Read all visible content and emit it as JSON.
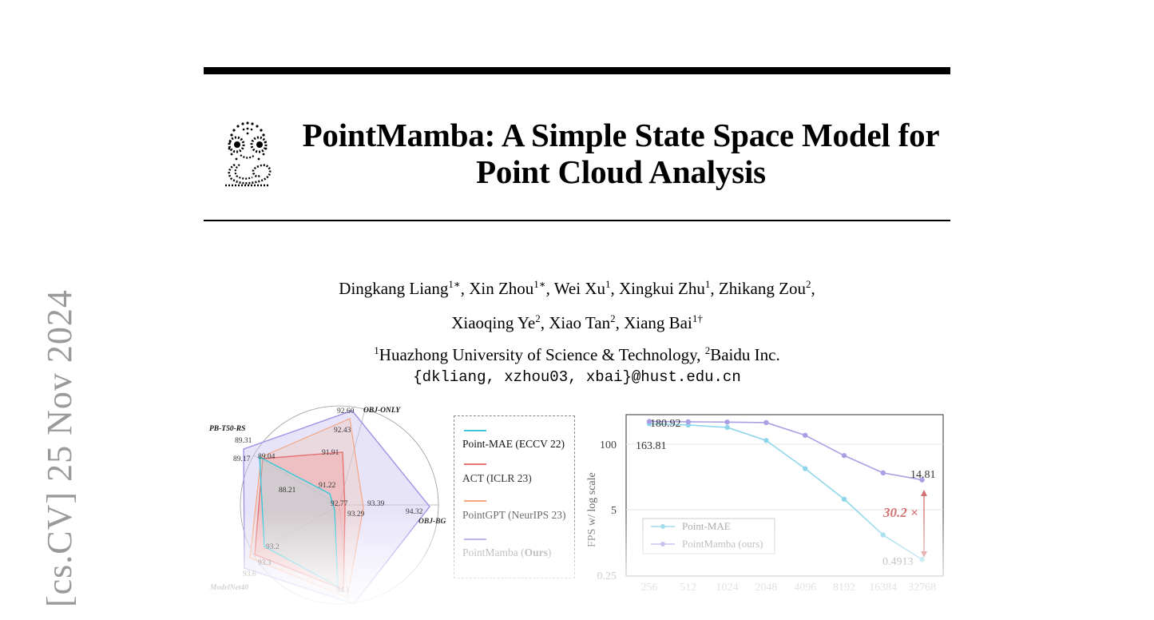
{
  "paper": {
    "title_line1": "PointMamba: A Simple State Space Model for",
    "title_line2": "Point Cloud Analysis",
    "authors_line1": [
      {
        "name": "Dingkang Liang",
        "sup": "1∗"
      },
      {
        "name": "Xin Zhou",
        "sup": "1∗"
      },
      {
        "name": "Wei Xu",
        "sup": "1"
      },
      {
        "name": "Xingkui Zhu",
        "sup": "1"
      },
      {
        "name": "Zhikang Zou",
        "sup": "2"
      }
    ],
    "authors_line2": [
      {
        "name": "Xiaoqing Ye",
        "sup": "2"
      },
      {
        "name": "Xiao Tan",
        "sup": "2"
      },
      {
        "name": "Xiang Bai",
        "sup": "1†"
      }
    ],
    "affiliation1_sup": "1",
    "affiliation1": "Huazhong University of Science & Technology, ",
    "affiliation2_sup": "2",
    "affiliation2": "Baidu Inc.",
    "email": "{dkliang, xzhou03, xbai}@hust.edu.cn",
    "arxiv_stamp": "[cs.CV]  25 Nov 2024"
  },
  "legend": {
    "items": [
      {
        "label": "Point-MAE (ECCV 22)",
        "color": "#3cc8d8"
      },
      {
        "label": "ACT (ICLR 23)",
        "color": "#e57373"
      },
      {
        "label": "PointGPT (NeurIPS 23)",
        "color": "#f4a582"
      },
      {
        "label_prefix": "PointMamba (",
        "label_bold": "Ours",
        "label_suffix": ")",
        "color": "#9f94e6"
      }
    ]
  },
  "chart_data": [
    {
      "type": "radar",
      "axes": [
        {
          "name": "OBJ-ONLY"
        },
        {
          "name": "OBJ-BG"
        },
        {
          "name": ""
        },
        {
          "name": "ModelNet40"
        },
        {
          "name": "PB-T50-RS"
        }
      ],
      "value_labels": [
        "92.60",
        "92.43",
        "91.91",
        "91.22",
        "92.77",
        "93.39",
        "93.29",
        "94.32",
        "88.21",
        "89.31",
        "89.17",
        "89.04",
        "93.2",
        "93.3",
        "93.6",
        "84.1"
      ],
      "series": [
        {
          "name": "Point-MAE (ECCV 22)",
          "color": "#3cc8d8"
        },
        {
          "name": "ACT (ICLR 23)",
          "color": "#e57373"
        },
        {
          "name": "PointGPT (NeurIPS 23)",
          "color": "#f4a582"
        },
        {
          "name": "PointMamba (Ours)",
          "color": "#9f94e6"
        }
      ]
    },
    {
      "type": "line",
      "x": [
        256,
        512,
        1024,
        2048,
        4096,
        8192,
        16384,
        32768
      ],
      "x_tick_labels": [
        "256",
        "512",
        "1024",
        "2048",
        "4096",
        "8192",
        "16384",
        "32768"
      ],
      "ylabel": "FPS w/ log scale",
      "y_scale": "log",
      "y_ticks": [
        "100",
        "5",
        "0.25"
      ],
      "ylim": [
        0.25,
        250
      ],
      "grid": true,
      "legend_position": "bottom-left",
      "series": [
        {
          "name": "Point-MAE",
          "color": "#8fd6ea",
          "values": [
            163.81,
            155,
            140,
            80,
            24,
            6.5,
            1.4,
            0.4913
          ]
        },
        {
          "name": "PointMamba (ours)",
          "color": "#a99fe3",
          "values": [
            180.92,
            178,
            176,
            172,
            100,
            42,
            20,
            14.81
          ]
        }
      ],
      "point_labels": [
        "180.92",
        "163.81",
        "14.81",
        "0.4913"
      ],
      "annotation": "30.2 ×"
    }
  ]
}
